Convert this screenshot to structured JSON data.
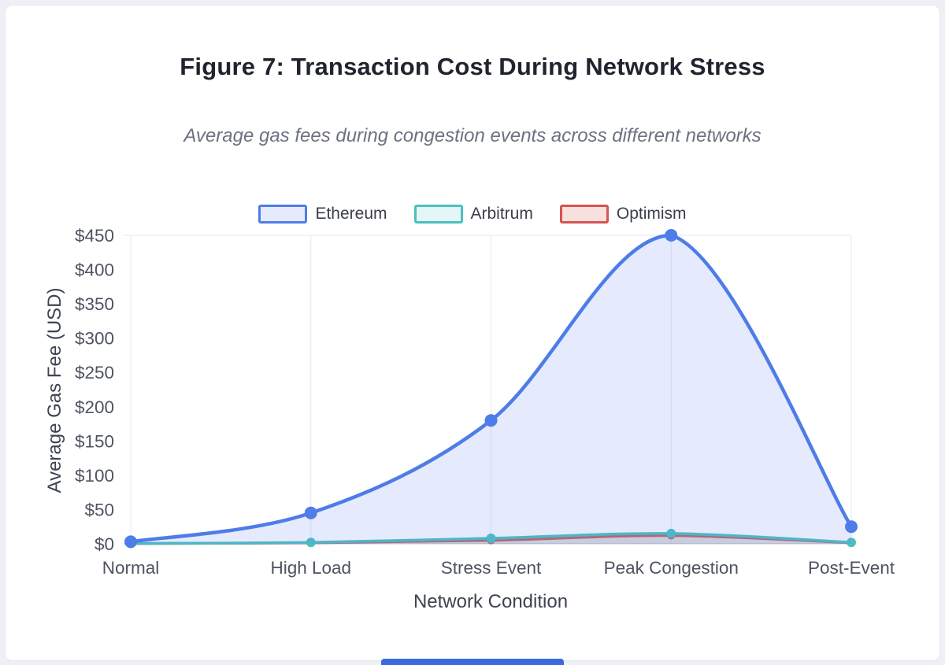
{
  "page": {
    "background": "#eef0f5",
    "card_background": "#ffffff",
    "bottom_peek_color": "#3c6be0"
  },
  "chart_data": {
    "type": "line",
    "title": "Figure 7: Transaction Cost During Network Stress",
    "subtitle": "Average gas fees during congestion events across different networks",
    "categories": [
      "Normal",
      "High Load",
      "Stress Event",
      "Peak Congestion",
      "Post-Event"
    ],
    "series": [
      {
        "name": "Ethereum",
        "color": "#4e7ce8",
        "fill": "rgba(94,129,244,0.16)",
        "line_width": 4.5,
        "point_radius": 8,
        "values": [
          3,
          45,
          180,
          450,
          25
        ]
      },
      {
        "name": "Arbitrum",
        "color": "#4bc0c0",
        "fill": "rgba(75,192,192,0.15)",
        "line_width": 3.5,
        "point_radius": 6,
        "values": [
          0.5,
          2,
          8,
          15,
          2
        ]
      },
      {
        "name": "Optimism",
        "color": "#d9534f",
        "fill": "rgba(217,83,79,0.18)",
        "line_width": 3.5,
        "point_radius": 5,
        "values": [
          0.3,
          1.5,
          5,
          12,
          1.5
        ]
      }
    ],
    "xlabel": "Network Condition",
    "ylabel": "Average Gas Fee (USD)",
    "ylim": [
      0,
      450
    ],
    "yticks": [
      0,
      50,
      100,
      150,
      200,
      250,
      300,
      350,
      400,
      450
    ],
    "ytick_labels": [
      "$0",
      "$50",
      "$100",
      "$150",
      "$200",
      "$250",
      "$300",
      "$350",
      "$400",
      "$450"
    ],
    "grid": "vertical",
    "legend_position": "top"
  }
}
